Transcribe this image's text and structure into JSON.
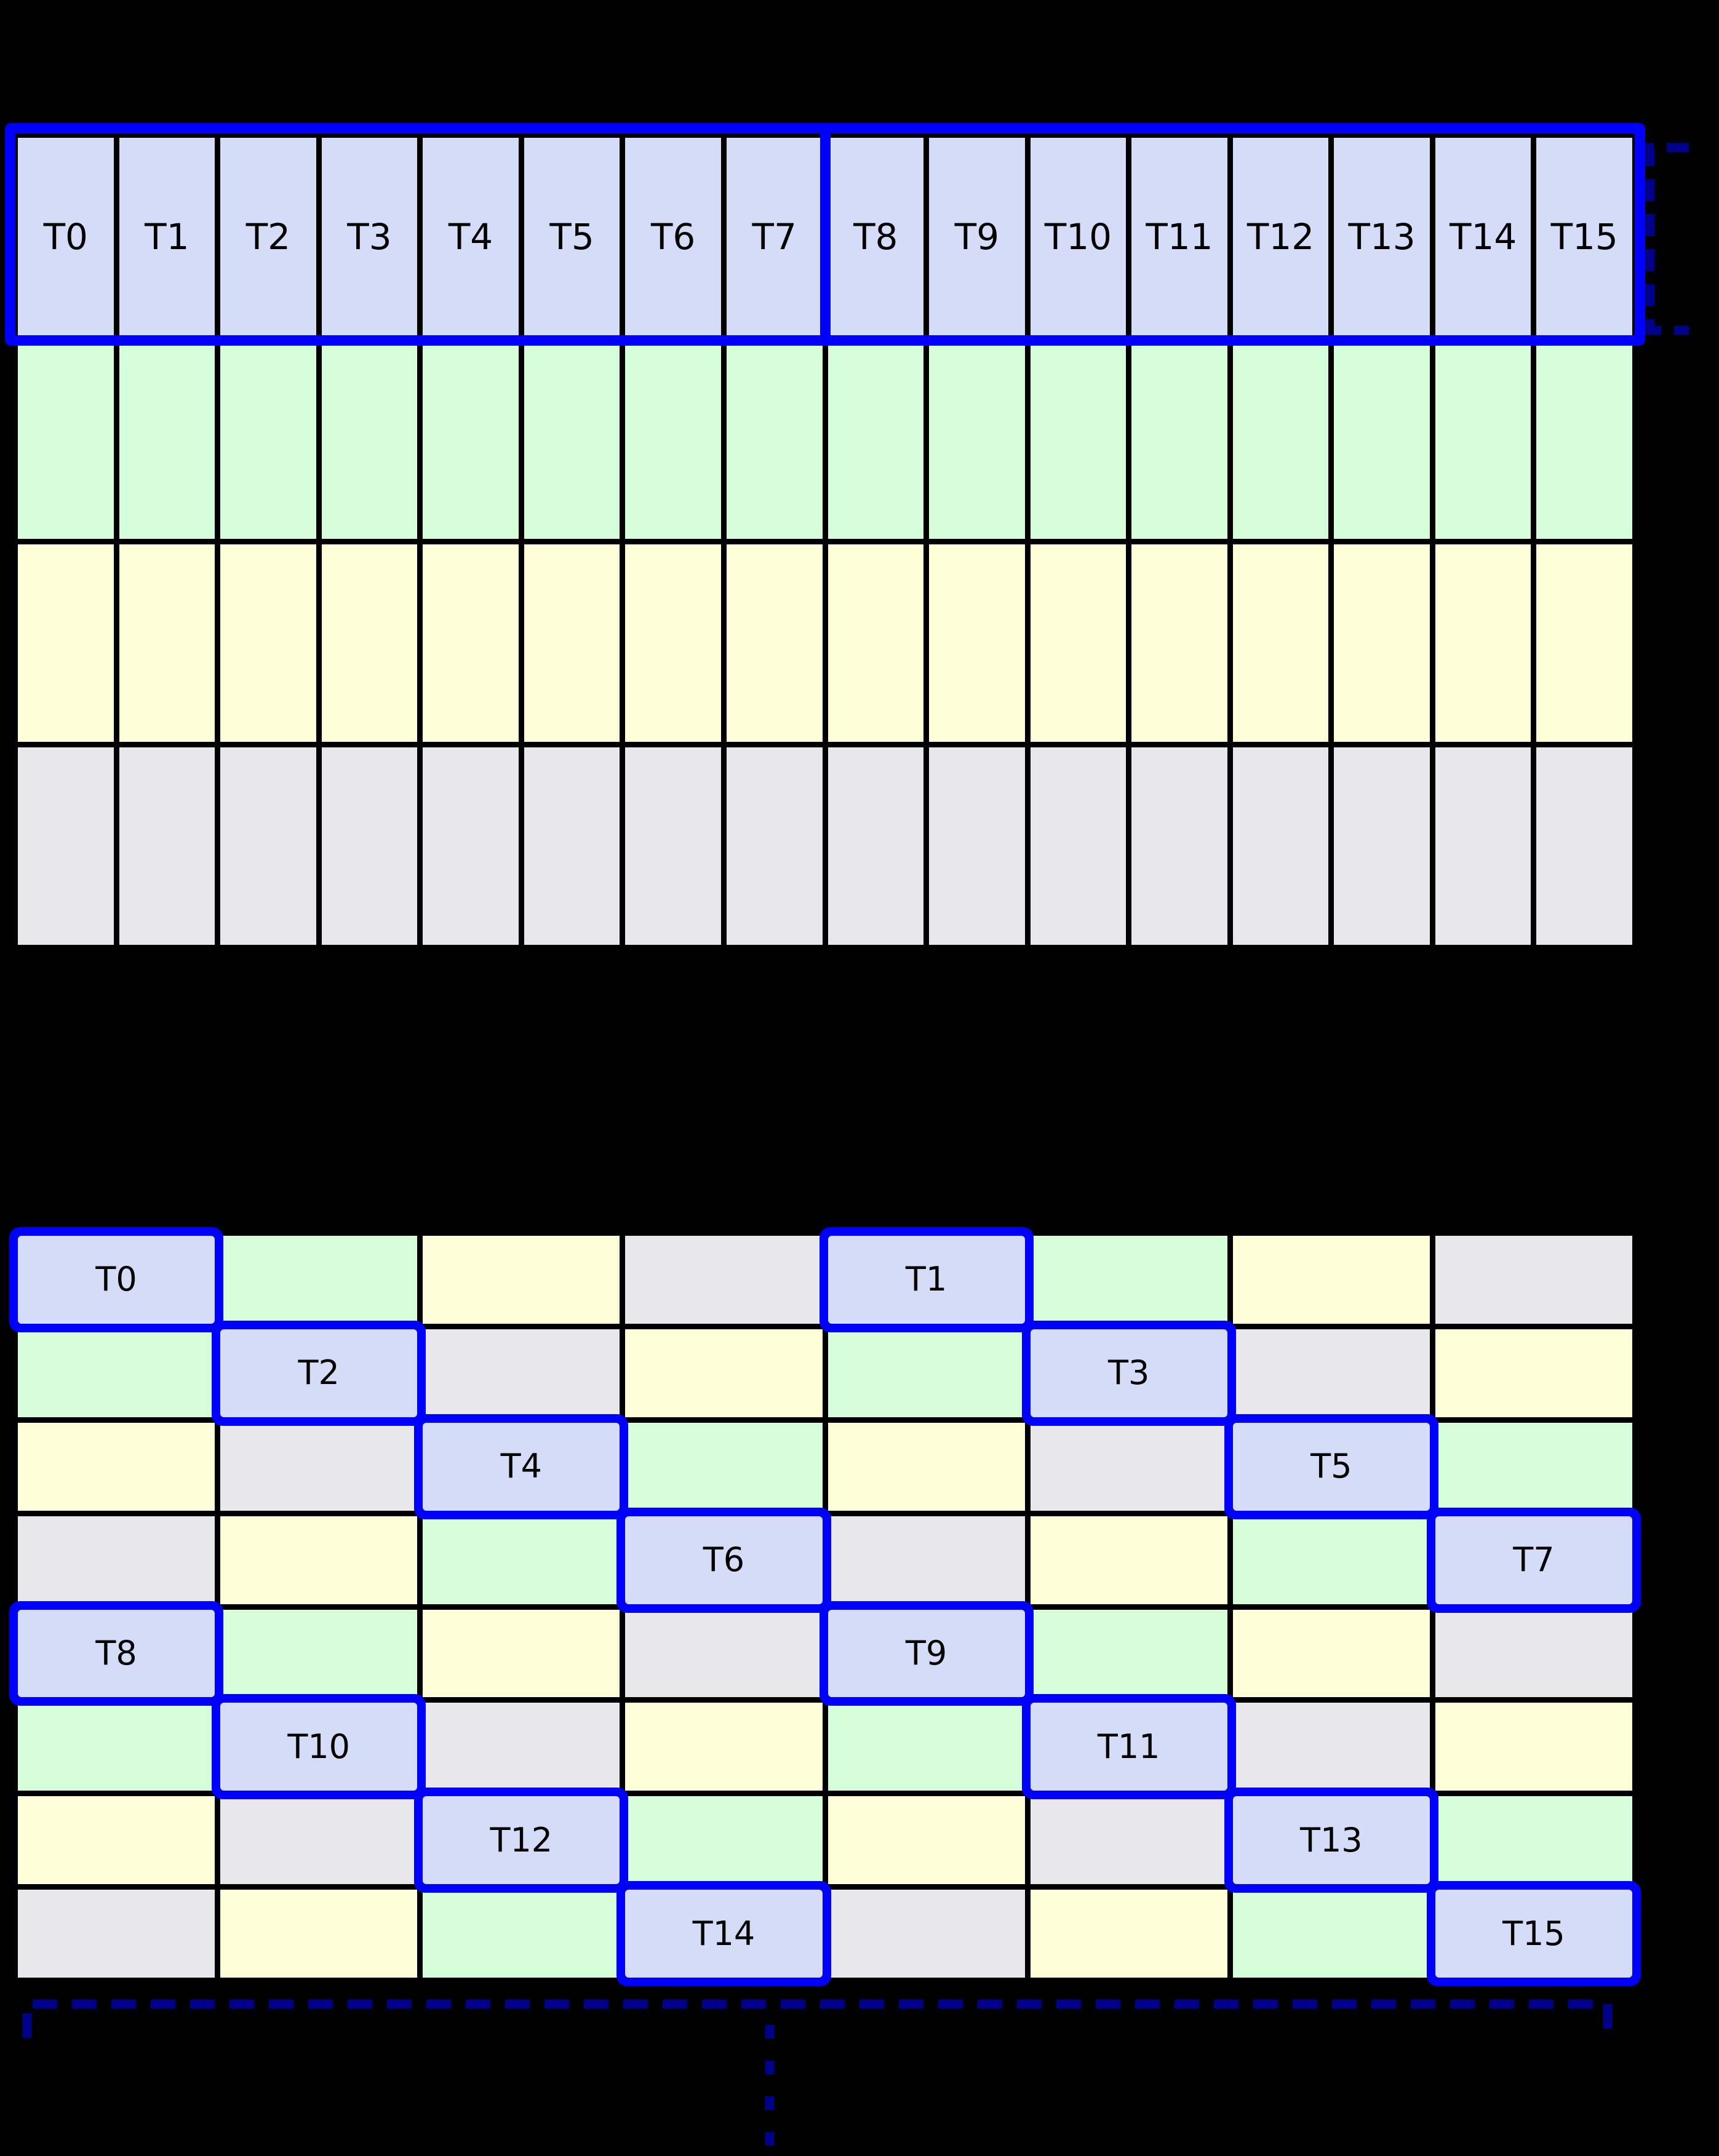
{
  "top_grid": {
    "columns": 16,
    "header_labels": [
      "T0",
      "T1",
      "T2",
      "T3",
      "T4",
      "T5",
      "T6",
      "T7",
      "T8",
      "T9",
      "T10",
      "T11",
      "T12",
      "T13",
      "T14",
      "T15"
    ],
    "row_color_keys": [
      "blue",
      "green",
      "yellow",
      "gray"
    ]
  },
  "bottom_grid": {
    "rows": [
      [
        {
          "color": "blue",
          "label": "T0"
        },
        {
          "color": "green",
          "label": ""
        },
        {
          "color": "yellow",
          "label": ""
        },
        {
          "color": "gray",
          "label": ""
        },
        {
          "color": "blue",
          "label": "T1"
        },
        {
          "color": "green",
          "label": ""
        },
        {
          "color": "yellow",
          "label": ""
        },
        {
          "color": "gray",
          "label": ""
        }
      ],
      [
        {
          "color": "green",
          "label": ""
        },
        {
          "color": "blue",
          "label": "T2"
        },
        {
          "color": "gray",
          "label": ""
        },
        {
          "color": "yellow",
          "label": ""
        },
        {
          "color": "green",
          "label": ""
        },
        {
          "color": "blue",
          "label": "T3"
        },
        {
          "color": "gray",
          "label": ""
        },
        {
          "color": "yellow",
          "label": ""
        }
      ],
      [
        {
          "color": "yellow",
          "label": ""
        },
        {
          "color": "gray",
          "label": ""
        },
        {
          "color": "blue",
          "label": "T4"
        },
        {
          "color": "green",
          "label": ""
        },
        {
          "color": "yellow",
          "label": ""
        },
        {
          "color": "gray",
          "label": ""
        },
        {
          "color": "blue",
          "label": "T5"
        },
        {
          "color": "green",
          "label": ""
        }
      ],
      [
        {
          "color": "gray",
          "label": ""
        },
        {
          "color": "yellow",
          "label": ""
        },
        {
          "color": "green",
          "label": ""
        },
        {
          "color": "blue",
          "label": "T6"
        },
        {
          "color": "gray",
          "label": ""
        },
        {
          "color": "yellow",
          "label": ""
        },
        {
          "color": "green",
          "label": ""
        },
        {
          "color": "blue",
          "label": "T7"
        }
      ],
      [
        {
          "color": "blue",
          "label": "T8"
        },
        {
          "color": "green",
          "label": ""
        },
        {
          "color": "yellow",
          "label": ""
        },
        {
          "color": "gray",
          "label": ""
        },
        {
          "color": "blue",
          "label": "T9"
        },
        {
          "color": "green",
          "label": ""
        },
        {
          "color": "yellow",
          "label": ""
        },
        {
          "color": "gray",
          "label": ""
        }
      ],
      [
        {
          "color": "green",
          "label": ""
        },
        {
          "color": "blue",
          "label": "T10"
        },
        {
          "color": "gray",
          "label": ""
        },
        {
          "color": "yellow",
          "label": ""
        },
        {
          "color": "green",
          "label": ""
        },
        {
          "color": "blue",
          "label": "T11"
        },
        {
          "color": "gray",
          "label": ""
        },
        {
          "color": "yellow",
          "label": ""
        }
      ],
      [
        {
          "color": "yellow",
          "label": ""
        },
        {
          "color": "gray",
          "label": ""
        },
        {
          "color": "blue",
          "label": "T12"
        },
        {
          "color": "green",
          "label": ""
        },
        {
          "color": "yellow",
          "label": ""
        },
        {
          "color": "gray",
          "label": ""
        },
        {
          "color": "blue",
          "label": "T13"
        },
        {
          "color": "green",
          "label": ""
        }
      ],
      [
        {
          "color": "gray",
          "label": ""
        },
        {
          "color": "yellow",
          "label": ""
        },
        {
          "color": "green",
          "label": ""
        },
        {
          "color": "blue",
          "label": "T14"
        },
        {
          "color": "gray",
          "label": ""
        },
        {
          "color": "yellow",
          "label": ""
        },
        {
          "color": "green",
          "label": ""
        },
        {
          "color": "blue",
          "label": "T15"
        }
      ]
    ]
  },
  "colors": {
    "background": "#000000",
    "grid_line": "#000000",
    "cell_blue": "#D5DCF8",
    "cell_green": "#D5FDD9",
    "cell_yellow": "#FEFFD8",
    "cell_gray": "#E8E7EB",
    "highlight_blue": "#0000FF",
    "bracket_navy": "#00008B",
    "label_text": "#000000"
  }
}
